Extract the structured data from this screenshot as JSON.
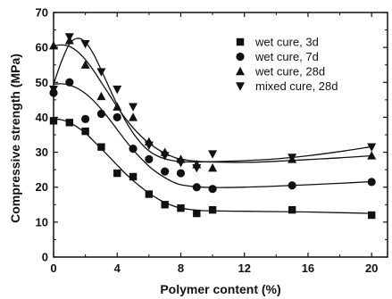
{
  "chart_data": {
    "type": "scatter",
    "title": "",
    "xlabel": "Polymer content (%)",
    "ylabel": "Compressive strength (MPa)",
    "xlim": [
      0,
      21
    ],
    "ylim": [
      0,
      70
    ],
    "xticks": [
      0,
      4,
      8,
      12,
      16,
      20
    ],
    "yticks": [
      0,
      10,
      20,
      30,
      40,
      50,
      60,
      70
    ],
    "grid": false,
    "legend_position": "top-right",
    "series": [
      {
        "name": "wet cure, 3d",
        "marker": "square",
        "x": [
          0,
          1,
          2,
          3,
          4,
          5,
          6,
          7,
          8,
          9,
          10,
          15,
          20
        ],
        "y": [
          39,
          38.5,
          36,
          31.5,
          24,
          23,
          18,
          15,
          14,
          12.5,
          13.5,
          13.5,
          12
        ],
        "fit_x": [
          0,
          0.5,
          1,
          1.5,
          2,
          2.5,
          3,
          3.5,
          4,
          4.5,
          5,
          5.5,
          6,
          6.5,
          7,
          7.5,
          8,
          9,
          10,
          12,
          14,
          16,
          18,
          20
        ],
        "fit_y": [
          39.5,
          39.3,
          38.5,
          37.2,
          35.5,
          33.3,
          31,
          28.7,
          26.3,
          24,
          21.9,
          20,
          18.3,
          16.8,
          15.6,
          14.7,
          14,
          13.4,
          13.2,
          13.1,
          13,
          12.9,
          12.7,
          12.5
        ]
      },
      {
        "name": "wet cure, 7d",
        "marker": "circle",
        "x": [
          0,
          1,
          2,
          3,
          4,
          5,
          6,
          7,
          8,
          9,
          10,
          15,
          20
        ],
        "y": [
          47,
          50,
          39.5,
          41,
          40,
          31,
          28,
          24.5,
          24,
          20,
          19.5,
          20.5,
          21.5
        ],
        "fit_x": [
          0,
          0.5,
          1,
          1.5,
          2,
          2.5,
          3,
          3.5,
          4,
          4.5,
          5,
          5.5,
          6,
          6.5,
          7,
          7.5,
          8,
          9,
          10,
          12,
          14,
          16,
          18,
          20
        ],
        "fit_y": [
          49.5,
          49.6,
          49.2,
          48.3,
          46.8,
          44.8,
          42.3,
          39.5,
          36.5,
          33.5,
          30.7,
          28.2,
          26,
          24.2,
          22.7,
          21.5,
          20.7,
          20.1,
          19.9,
          20,
          20.3,
          20.7,
          21.1,
          21.6
        ]
      },
      {
        "name": "wet cure, 28d",
        "marker": "triangle-up",
        "x": [
          0,
          1,
          2,
          3,
          4,
          5,
          6,
          7,
          8,
          9,
          10,
          15,
          20
        ],
        "y": [
          60.5,
          62,
          55,
          46,
          43,
          40,
          33,
          30,
          28,
          26.5,
          25.5,
          28,
          29
        ],
        "fit_x": [
          0,
          0.5,
          1,
          1.5,
          2,
          2.5,
          3,
          3.5,
          4,
          4.5,
          5,
          5.5,
          6,
          6.5,
          7,
          7.5,
          8,
          9,
          10,
          12,
          14,
          16,
          18,
          20
        ],
        "fit_y": [
          60.5,
          60.7,
          60.3,
          58.8,
          56.5,
          53.5,
          50,
          46.5,
          43,
          39.8,
          37,
          34.6,
          32.6,
          31,
          29.7,
          28.7,
          28,
          27.4,
          27.2,
          27.1,
          27.4,
          27.9,
          28.4,
          29
        ]
      },
      {
        "name": "mixed cure, 28d",
        "marker": "triangle-down",
        "x": [
          0,
          1,
          2,
          3,
          4,
          5,
          6,
          7,
          8,
          9,
          10,
          15,
          20
        ],
        "y": [
          48,
          63,
          61,
          53,
          48,
          43,
          32,
          29,
          27,
          25.5,
          29.5,
          28.5,
          31.5
        ],
        "fit_x": [
          0,
          0.5,
          1,
          1.5,
          2,
          2.5,
          3,
          3.5,
          4,
          4.5,
          5,
          5.5,
          6,
          6.5,
          7,
          7.5,
          8,
          9,
          10,
          12,
          14,
          16,
          18,
          20
        ],
        "fit_y": [
          49.5,
          56,
          61,
          62.6,
          61.5,
          58.2,
          53.5,
          48.5,
          43.6,
          39.2,
          35.5,
          32.6,
          30.4,
          29,
          28.1,
          27.6,
          27.3,
          27.2,
          27.3,
          27.6,
          28.1,
          29,
          30.2,
          31.6
        ]
      }
    ]
  }
}
